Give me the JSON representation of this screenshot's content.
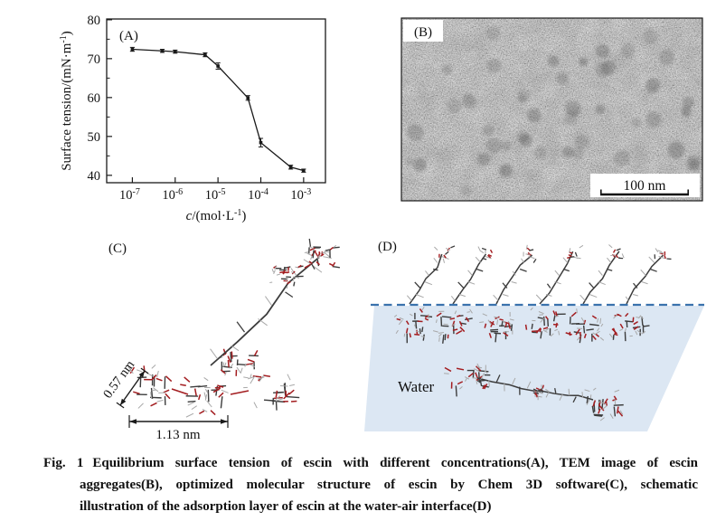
{
  "chart_data": {
    "type": "line",
    "x": [
      1e-07,
      5e-07,
      1e-06,
      5e-06,
      1e-05,
      5e-05,
      0.0001,
      0.0005,
      0.001
    ],
    "y": [
      72.4,
      72.0,
      71.8,
      71.0,
      68.1,
      59.9,
      48.4,
      42.1,
      41.2
    ],
    "yerr": [
      0.5,
      0.4,
      0.4,
      0.5,
      0.8,
      0.6,
      1.1,
      0.5,
      0.4
    ],
    "x_tick_values": [
      1e-07,
      1e-06,
      1e-05,
      0.0001,
      0.001
    ],
    "x_tick_exps": [
      "-7",
      "-6",
      "-5",
      "-4",
      "-3"
    ],
    "y_ticks": [
      40,
      50,
      60,
      70,
      80
    ],
    "y_minor_ticks": [
      45,
      55,
      65,
      75
    ],
    "xlim_log": [
      -7.6,
      -2.49
    ],
    "ylim": [
      38.1,
      80.2
    ],
    "xlabel": {
      "italic": "c",
      "main": "/(mol·L",
      "sup": "-1",
      "post": ")"
    },
    "ylabel": {
      "main": "Surface tension/(mN·m",
      "sup": "-1",
      "post": ")"
    },
    "axis_color": "#1a1a1a",
    "line_color": "#1a1a1a",
    "grid": "off",
    "legend": "none"
  },
  "panel_a": {
    "label": "(A)"
  },
  "panel_b": {
    "label": "(B)",
    "scale_bar": "100 nm"
  },
  "panel_c": {
    "label": "(C)",
    "dim_diagonal": "0.57 nm",
    "dim_horizontal": "1.13 nm"
  },
  "panel_d": {
    "label": "(D)",
    "water_label": "Water",
    "colors": {
      "water_fill": "#dce7f3",
      "interface_line": "#3a72ad"
    }
  },
  "molecule_colors": {
    "carbon": "#3c3c3c",
    "oxygen": "#a31d20",
    "hydrogen": "#a8a8a8"
  },
  "tem": {
    "mean_gray": "#8e8e8e"
  },
  "caption": {
    "label": "Fig. 1",
    "line1": "Equilibrium surface tension of escin with different concentrations(A), TEM image of escin",
    "line2": "aggregates(B), optimized molecular structure of escin by Chem 3D software(C), schematic",
    "line3": "illustration of the adsorption layer of escin at the water-air interface(D)"
  }
}
